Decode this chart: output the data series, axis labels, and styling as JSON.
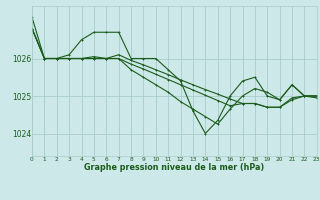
{
  "background_color": "#cce8e8",
  "grid_color": "#aacccc",
  "line_color": "#1a5c1a",
  "marker_color": "#1a5c1a",
  "title": "Graphe pression niveau de la mer (hPa)",
  "xlim": [
    0,
    23
  ],
  "ylim": [
    1023.4,
    1027.4
  ],
  "yticks": [
    1024,
    1025,
    1026
  ],
  "xticks": [
    0,
    1,
    2,
    3,
    4,
    5,
    6,
    7,
    8,
    9,
    10,
    11,
    12,
    13,
    14,
    15,
    16,
    17,
    18,
    19,
    20,
    21,
    22,
    23
  ],
  "line1_x": [
    0,
    1,
    2,
    3,
    4,
    5,
    6,
    7,
    8,
    9,
    10,
    11,
    12,
    13,
    14,
    15,
    16,
    17,
    18,
    19,
    20,
    21,
    22,
    23
  ],
  "line1_y": [
    1027.1,
    1026.0,
    1026.0,
    1026.1,
    1026.5,
    1026.7,
    1026.7,
    1026.7,
    1026.0,
    1026.0,
    1026.0,
    1025.7,
    1025.4,
    1024.6,
    1024.0,
    1024.35,
    1025.0,
    1025.4,
    1025.5,
    1025.0,
    1024.9,
    1025.3,
    1025.0,
    1025.0
  ],
  "line2_x": [
    0,
    1,
    2,
    3,
    4,
    5,
    6,
    7,
    8,
    9,
    10,
    11,
    12,
    13,
    14,
    15,
    16,
    17,
    18,
    19,
    20,
    21,
    22,
    23
  ],
  "line2_y": [
    1026.8,
    1026.0,
    1026.0,
    1026.0,
    1026.0,
    1026.0,
    1026.0,
    1026.0,
    1025.85,
    1025.72,
    1025.58,
    1025.44,
    1025.3,
    1025.16,
    1025.02,
    1024.88,
    1024.74,
    1024.8,
    1024.8,
    1024.7,
    1024.7,
    1024.9,
    1025.0,
    1025.0
  ],
  "line3_x": [
    0,
    1,
    2,
    3,
    4,
    5,
    6,
    7,
    8,
    9,
    10,
    11,
    12,
    13,
    14,
    15,
    16,
    17,
    18,
    19,
    20,
    21,
    22,
    23
  ],
  "line3_y": [
    1026.8,
    1026.0,
    1026.0,
    1026.0,
    1026.0,
    1026.0,
    1026.0,
    1026.0,
    1025.7,
    1025.5,
    1025.3,
    1025.1,
    1024.85,
    1024.65,
    1024.45,
    1024.25,
    1024.65,
    1025.0,
    1025.2,
    1025.1,
    1024.9,
    1025.3,
    1025.0,
    1024.95
  ],
  "line4_x": [
    0,
    1,
    2,
    3,
    4,
    5,
    6,
    7,
    8,
    9,
    10,
    11,
    12,
    13,
    14,
    15,
    16,
    17,
    18,
    19,
    20,
    21,
    22,
    23
  ],
  "line4_y": [
    1026.8,
    1026.0,
    1026.0,
    1026.0,
    1026.0,
    1026.05,
    1026.0,
    1026.1,
    1025.95,
    1025.83,
    1025.7,
    1025.57,
    1025.43,
    1025.3,
    1025.17,
    1025.05,
    1024.92,
    1024.8,
    1024.8,
    1024.7,
    1024.7,
    1024.95,
    1025.0,
    1025.0
  ]
}
